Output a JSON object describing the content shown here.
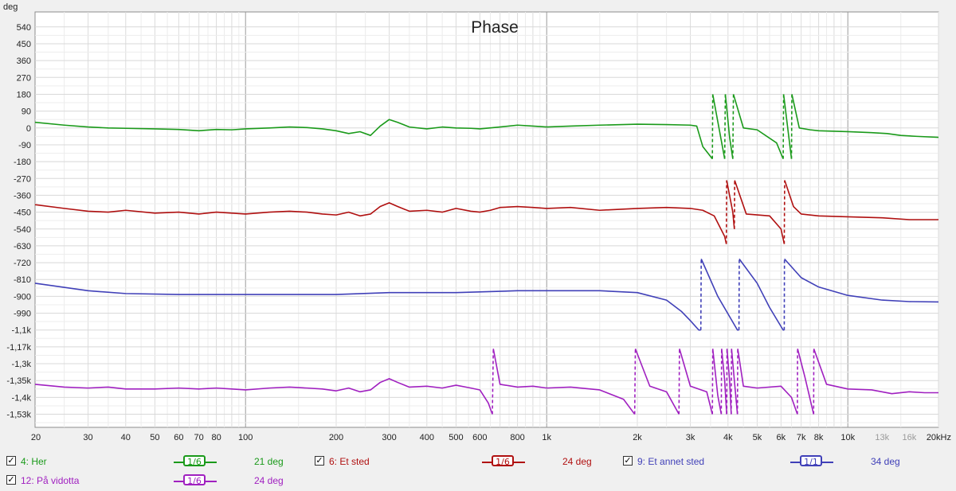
{
  "chart_data": {
    "type": "line",
    "title": "Phase",
    "ylabel": "deg",
    "xscale": "log",
    "xlim": [
      20,
      20000
    ],
    "ylim": [
      -1600,
      620
    ],
    "grid": true,
    "y_ticks": [
      {
        "v": 540,
        "label": "540"
      },
      {
        "v": 450,
        "label": "450"
      },
      {
        "v": 360,
        "label": "360"
      },
      {
        "v": 270,
        "label": "270"
      },
      {
        "v": 180,
        "label": "180"
      },
      {
        "v": 90,
        "label": "90"
      },
      {
        "v": 0,
        "label": "0"
      },
      {
        "v": -90,
        "label": "-90"
      },
      {
        "v": -180,
        "label": "-180"
      },
      {
        "v": -270,
        "label": "-270"
      },
      {
        "v": -360,
        "label": "-360"
      },
      {
        "v": -450,
        "label": "-450"
      },
      {
        "v": -540,
        "label": "-540"
      },
      {
        "v": -630,
        "label": "-630"
      },
      {
        "v": -720,
        "label": "-720"
      },
      {
        "v": -810,
        "label": "-810"
      },
      {
        "v": -900,
        "label": "-900"
      },
      {
        "v": -990,
        "label": "-990"
      },
      {
        "v": -1080,
        "label": "-1,1k"
      },
      {
        "v": -1170,
        "label": "-1,17k"
      },
      {
        "v": -1260,
        "label": "-1,3k"
      },
      {
        "v": -1350,
        "label": "-1,35k"
      },
      {
        "v": -1440,
        "label": "-1,4k"
      },
      {
        "v": -1530,
        "label": "-1,53k"
      }
    ],
    "x_ticks": [
      {
        "v": 20,
        "label": "20",
        "dim": false
      },
      {
        "v": 30,
        "label": "30",
        "dim": false
      },
      {
        "v": 40,
        "label": "40",
        "dim": false
      },
      {
        "v": 50,
        "label": "50",
        "dim": false
      },
      {
        "v": 60,
        "label": "60",
        "dim": false
      },
      {
        "v": 70,
        "label": "70",
        "dim": false
      },
      {
        "v": 80,
        "label": "80",
        "dim": false
      },
      {
        "v": 100,
        "label": "100",
        "dim": false
      },
      {
        "v": 200,
        "label": "200",
        "dim": false
      },
      {
        "v": 300,
        "label": "300",
        "dim": false
      },
      {
        "v": 400,
        "label": "400",
        "dim": false
      },
      {
        "v": 500,
        "label": "500",
        "dim": false
      },
      {
        "v": 600,
        "label": "600",
        "dim": false
      },
      {
        "v": 800,
        "label": "800",
        "dim": false
      },
      {
        "v": 1000,
        "label": "1k",
        "dim": false
      },
      {
        "v": 2000,
        "label": "2k",
        "dim": false
      },
      {
        "v": 3000,
        "label": "3k",
        "dim": false
      },
      {
        "v": 4000,
        "label": "4k",
        "dim": false
      },
      {
        "v": 5000,
        "label": "5k",
        "dim": false
      },
      {
        "v": 6000,
        "label": "6k",
        "dim": false
      },
      {
        "v": 7000,
        "label": "7k",
        "dim": false
      },
      {
        "v": 8000,
        "label": "8k",
        "dim": false
      },
      {
        "v": 10000,
        "label": "10k",
        "dim": false
      },
      {
        "v": 13000,
        "label": "13k",
        "dim": true
      },
      {
        "v": 16000,
        "label": "16k",
        "dim": true
      },
      {
        "v": 20000,
        "label": "20kHz",
        "dim": false
      }
    ],
    "series": [
      {
        "name": "4: Her",
        "color": "#1a9a1a",
        "smoothing": "1/6",
        "offset_label": "21 deg",
        "checked": true,
        "points": [
          [
            20,
            30
          ],
          [
            25,
            15
          ],
          [
            30,
            5
          ],
          [
            35,
            0
          ],
          [
            40,
            -2
          ],
          [
            50,
            -5
          ],
          [
            60,
            -8
          ],
          [
            70,
            -15
          ],
          [
            80,
            -8
          ],
          [
            90,
            -10
          ],
          [
            100,
            -5
          ],
          [
            120,
            0
          ],
          [
            140,
            5
          ],
          [
            160,
            2
          ],
          [
            180,
            -5
          ],
          [
            200,
            -15
          ],
          [
            220,
            -30
          ],
          [
            240,
            -20
          ],
          [
            260,
            -40
          ],
          [
            280,
            10
          ],
          [
            300,
            45
          ],
          [
            320,
            30
          ],
          [
            350,
            5
          ],
          [
            400,
            -5
          ],
          [
            450,
            5
          ],
          [
            500,
            0
          ],
          [
            560,
            -2
          ],
          [
            600,
            -5
          ],
          [
            700,
            5
          ],
          [
            800,
            15
          ],
          [
            900,
            10
          ],
          [
            1000,
            5
          ],
          [
            1200,
            10
          ],
          [
            1500,
            15
          ],
          [
            2000,
            20
          ],
          [
            2500,
            18
          ],
          [
            3000,
            15
          ],
          [
            3150,
            10
          ],
          [
            3300,
            -100
          ],
          [
            3550,
            -165
          ],
          [
            3560,
            180
          ],
          [
            3900,
            -165
          ],
          [
            3920,
            180
          ],
          [
            4050,
            -50
          ],
          [
            4150,
            -165
          ],
          [
            4170,
            180
          ],
          [
            4500,
            0
          ],
          [
            5000,
            -10
          ],
          [
            5800,
            -80
          ],
          [
            6100,
            -165
          ],
          [
            6120,
            180
          ],
          [
            6500,
            -165
          ],
          [
            6520,
            180
          ],
          [
            6900,
            0
          ],
          [
            7500,
            -10
          ],
          [
            8000,
            -15
          ],
          [
            10000,
            -20
          ],
          [
            12000,
            -25
          ],
          [
            13500,
            -30
          ],
          [
            15000,
            -40
          ],
          [
            17000,
            -45
          ],
          [
            20000,
            -50
          ]
        ]
      },
      {
        "name": "6: Et sted",
        "color": "#b01010",
        "smoothing": "1/6",
        "offset_label": "24 deg",
        "checked": true,
        "points": [
          [
            20,
            -410
          ],
          [
            25,
            -430
          ],
          [
            30,
            -445
          ],
          [
            35,
            -450
          ],
          [
            40,
            -440
          ],
          [
            50,
            -455
          ],
          [
            60,
            -450
          ],
          [
            70,
            -460
          ],
          [
            80,
            -450
          ],
          [
            90,
            -455
          ],
          [
            100,
            -460
          ],
          [
            120,
            -450
          ],
          [
            140,
            -445
          ],
          [
            160,
            -450
          ],
          [
            180,
            -460
          ],
          [
            200,
            -465
          ],
          [
            220,
            -450
          ],
          [
            240,
            -470
          ],
          [
            260,
            -460
          ],
          [
            280,
            -420
          ],
          [
            300,
            -400
          ],
          [
            320,
            -420
          ],
          [
            350,
            -445
          ],
          [
            400,
            -440
          ],
          [
            450,
            -450
          ],
          [
            500,
            -430
          ],
          [
            560,
            -445
          ],
          [
            600,
            -450
          ],
          [
            650,
            -440
          ],
          [
            700,
            -425
          ],
          [
            800,
            -420
          ],
          [
            900,
            -425
          ],
          [
            1000,
            -430
          ],
          [
            1200,
            -425
          ],
          [
            1500,
            -440
          ],
          [
            2000,
            -430
          ],
          [
            2500,
            -425
          ],
          [
            3000,
            -430
          ],
          [
            3300,
            -440
          ],
          [
            3600,
            -470
          ],
          [
            3900,
            -580
          ],
          [
            3950,
            -620
          ],
          [
            3960,
            -280
          ],
          [
            4150,
            -450
          ],
          [
            4200,
            -540
          ],
          [
            4210,
            -280
          ],
          [
            4600,
            -460
          ],
          [
            5500,
            -470
          ],
          [
            6000,
            -540
          ],
          [
            6150,
            -620
          ],
          [
            6170,
            -280
          ],
          [
            6600,
            -420
          ],
          [
            7000,
            -460
          ],
          [
            8000,
            -470
          ],
          [
            10000,
            -475
          ],
          [
            13000,
            -480
          ],
          [
            16000,
            -490
          ],
          [
            20000,
            -490
          ]
        ]
      },
      {
        "name": "9: Et annet sted",
        "color": "#4040b8",
        "smoothing": "1/1",
        "offset_label": "34 deg",
        "checked": true,
        "points": [
          [
            20,
            -830
          ],
          [
            30,
            -870
          ],
          [
            40,
            -885
          ],
          [
            60,
            -890
          ],
          [
            100,
            -890
          ],
          [
            200,
            -890
          ],
          [
            300,
            -880
          ],
          [
            500,
            -880
          ],
          [
            800,
            -870
          ],
          [
            1000,
            -870
          ],
          [
            1500,
            -870
          ],
          [
            2000,
            -880
          ],
          [
            2500,
            -920
          ],
          [
            2800,
            -980
          ],
          [
            3000,
            -1030
          ],
          [
            3200,
            -1080
          ],
          [
            3250,
            -1080
          ],
          [
            3260,
            -700
          ],
          [
            3700,
            -900
          ],
          [
            4300,
            -1080
          ],
          [
            4350,
            -1080
          ],
          [
            4360,
            -700
          ],
          [
            5000,
            -830
          ],
          [
            5500,
            -960
          ],
          [
            6100,
            -1080
          ],
          [
            6150,
            -1080
          ],
          [
            6160,
            -700
          ],
          [
            7000,
            -800
          ],
          [
            8000,
            -850
          ],
          [
            10000,
            -895
          ],
          [
            13000,
            -920
          ],
          [
            16000,
            -928
          ],
          [
            20000,
            -930
          ]
        ]
      },
      {
        "name": "12: På vidotta",
        "color": "#a020c0",
        "smoothing": "1/6",
        "offset_label": "24 deg",
        "checked": true,
        "points": [
          [
            20,
            -1370
          ],
          [
            25,
            -1385
          ],
          [
            30,
            -1390
          ],
          [
            35,
            -1385
          ],
          [
            40,
            -1395
          ],
          [
            50,
            -1395
          ],
          [
            60,
            -1390
          ],
          [
            70,
            -1395
          ],
          [
            80,
            -1390
          ],
          [
            90,
            -1395
          ],
          [
            100,
            -1400
          ],
          [
            120,
            -1390
          ],
          [
            140,
            -1385
          ],
          [
            160,
            -1390
          ],
          [
            180,
            -1395
          ],
          [
            200,
            -1405
          ],
          [
            220,
            -1390
          ],
          [
            240,
            -1410
          ],
          [
            260,
            -1400
          ],
          [
            280,
            -1360
          ],
          [
            300,
            -1340
          ],
          [
            320,
            -1360
          ],
          [
            350,
            -1385
          ],
          [
            400,
            -1380
          ],
          [
            450,
            -1390
          ],
          [
            500,
            -1375
          ],
          [
            560,
            -1390
          ],
          [
            600,
            -1400
          ],
          [
            640,
            -1470
          ],
          [
            660,
            -1530
          ],
          [
            665,
            -1180
          ],
          [
            700,
            -1370
          ],
          [
            800,
            -1385
          ],
          [
            900,
            -1380
          ],
          [
            1000,
            -1390
          ],
          [
            1200,
            -1385
          ],
          [
            1500,
            -1400
          ],
          [
            1800,
            -1450
          ],
          [
            1960,
            -1530
          ],
          [
            1970,
            -1180
          ],
          [
            2200,
            -1380
          ],
          [
            2500,
            -1410
          ],
          [
            2750,
            -1530
          ],
          [
            2760,
            -1180
          ],
          [
            3000,
            -1380
          ],
          [
            3400,
            -1410
          ],
          [
            3550,
            -1530
          ],
          [
            3560,
            -1180
          ],
          [
            3700,
            -1430
          ],
          [
            3800,
            -1530
          ],
          [
            3810,
            -1180
          ],
          [
            3900,
            -1350
          ],
          [
            3960,
            -1530
          ],
          [
            3970,
            -1180
          ],
          [
            4050,
            -1350
          ],
          [
            4100,
            -1530
          ],
          [
            4110,
            -1180
          ],
          [
            4200,
            -1350
          ],
          [
            4300,
            -1530
          ],
          [
            4310,
            -1180
          ],
          [
            4500,
            -1380
          ],
          [
            5000,
            -1390
          ],
          [
            6000,
            -1380
          ],
          [
            6500,
            -1440
          ],
          [
            6800,
            -1530
          ],
          [
            6810,
            -1180
          ],
          [
            7200,
            -1330
          ],
          [
            7700,
            -1530
          ],
          [
            7710,
            -1180
          ],
          [
            8500,
            -1370
          ],
          [
            10000,
            -1395
          ],
          [
            12000,
            -1400
          ],
          [
            14000,
            -1420
          ],
          [
            16000,
            -1410
          ],
          [
            18000,
            -1415
          ],
          [
            20000,
            -1415
          ]
        ]
      }
    ]
  },
  "legend": {
    "items": [
      {
        "check": "✓",
        "name": "4: Her",
        "smoothing": "1/6",
        "value": "21 deg",
        "color": "#1a9a1a"
      },
      {
        "check": "✓",
        "name": "6: Et sted",
        "smoothing": "1/6",
        "value": "24 deg",
        "color": "#b01010"
      },
      {
        "check": "✓",
        "name": "9: Et annet sted",
        "smoothing": "1/1",
        "value": "34 deg",
        "color": "#4040b8"
      },
      {
        "check": "✓",
        "name": "12: På vidotta",
        "smoothing": "1/6",
        "value": "24 deg",
        "color": "#a020c0"
      }
    ]
  }
}
